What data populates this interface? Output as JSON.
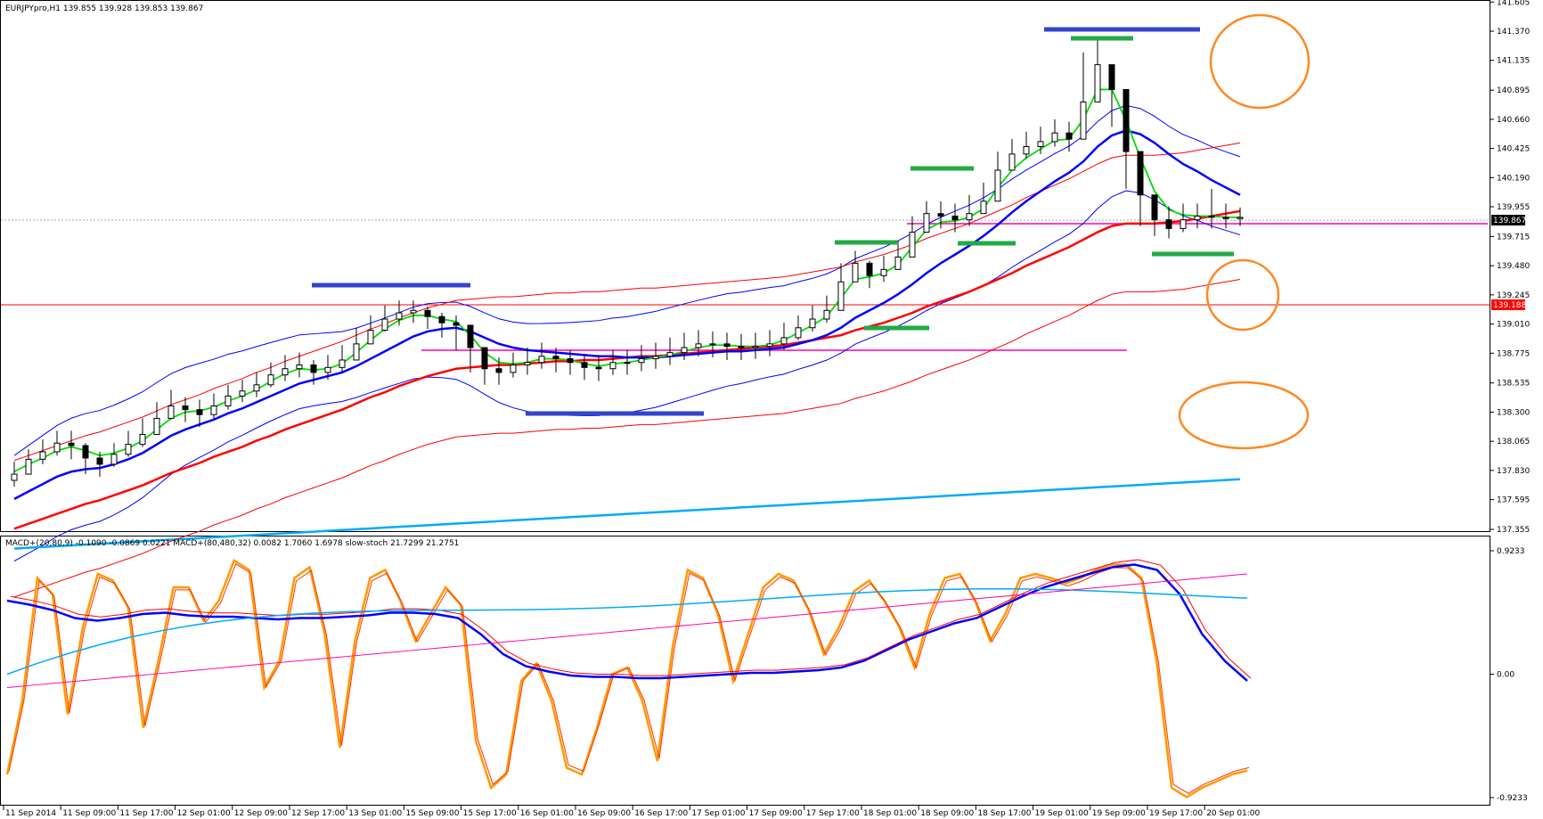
{
  "window": {
    "main_header": "EURJPYpro,H1  139.855 139.928 139.853 139.867",
    "sub_header": "MACD+(20,80,9) -0.1090 -0.0869 0.0221  MACD+(80,480,32) 0.0082 1.7060 1.6978  slow-stoch 21.7299 21.2751",
    "current_price": "139.867",
    "hline_price": "139.188"
  },
  "colors": {
    "price_line": "#ff0000",
    "bid_label_bg": "#000000",
    "ema_fast": "#00dd00",
    "ema_mid": "#0000ff",
    "ema_slow": "#ff0000",
    "ema_long": "#00aaff",
    "bollinger": "#0000ff",
    "envelope": "#ff0000",
    "support": "#ff00aa",
    "blue_marker": "#3344cc",
    "green_marker": "#22aa44",
    "circle": "#ff8822",
    "stoch": "#ff9900"
  },
  "chart_data": [
    {
      "type": "candlestick",
      "title": "EURJPYpro,H1",
      "ylim": [
        137.355,
        141.6
      ],
      "y_ticks": [
        "141.605",
        "141.370",
        "141.135",
        "140.895",
        "140.660",
        "140.425",
        "140.190",
        "139.955",
        "139.715",
        "139.480",
        "139.245",
        "139.010",
        "138.775",
        "138.535",
        "138.300",
        "138.065",
        "137.830",
        "137.595",
        "137.355"
      ],
      "x_ticks": [
        "11 Sep 2014",
        "11 Sep 09:00",
        "11 Sep 17:00",
        "12 Sep 01:00",
        "12 Sep 09:00",
        "12 Sep 17:00",
        "13 Sep 01:00",
        "15 Sep 09:00",
        "15 Sep 17:00",
        "16 Sep 01:00",
        "16 Sep 09:00",
        "16 Sep 17:00",
        "17 Sep 01:00",
        "17 Sep 09:00",
        "17 Sep 17:00",
        "18 Sep 01:00",
        "18 Sep 09:00",
        "18 Sep 17:00",
        "19 Sep 01:00",
        "19 Sep 09:00",
        "19 Sep 17:00",
        "20 Sep 01:00"
      ],
      "close": [
        137.8,
        137.92,
        137.98,
        138.05,
        138.03,
        137.93,
        137.88,
        137.96,
        138.04,
        138.12,
        138.25,
        138.35,
        138.32,
        138.28,
        138.35,
        138.43,
        138.47,
        138.52,
        138.6,
        138.65,
        138.68,
        138.62,
        138.66,
        138.72,
        138.85,
        138.96,
        139.05,
        139.1,
        139.12,
        139.07,
        139.02,
        139.0,
        138.82,
        138.65,
        138.62,
        138.68,
        138.7,
        138.75,
        138.73,
        138.7,
        138.66,
        138.65,
        138.7,
        138.7,
        138.73,
        138.75,
        138.78,
        138.82,
        138.85,
        138.85,
        138.83,
        138.82,
        138.83,
        138.85,
        138.9,
        138.98,
        139.05,
        139.12,
        139.35,
        139.5,
        139.4,
        139.45,
        139.55,
        139.75,
        139.9,
        139.88,
        139.85,
        139.9,
        140.0,
        140.25,
        140.38,
        140.44,
        140.48,
        140.55,
        140.5,
        140.8,
        141.1,
        140.9,
        140.4,
        140.05,
        139.85,
        139.78,
        139.85,
        139.88,
        139.87,
        139.86,
        139.87
      ],
      "high": [
        137.9,
        138.0,
        138.08,
        138.15,
        138.15,
        138.05,
        137.98,
        138.05,
        138.15,
        138.25,
        138.38,
        138.48,
        138.42,
        138.4,
        138.45,
        138.52,
        138.56,
        138.62,
        138.7,
        138.76,
        138.78,
        138.72,
        138.76,
        138.84,
        138.98,
        139.08,
        139.16,
        139.2,
        139.2,
        139.15,
        139.1,
        139.08,
        138.98,
        138.8,
        138.74,
        138.78,
        138.82,
        138.86,
        138.82,
        138.8,
        138.76,
        138.76,
        138.8,
        138.8,
        138.84,
        138.86,
        138.9,
        138.94,
        138.96,
        138.95,
        138.94,
        138.93,
        138.94,
        138.96,
        139.02,
        139.08,
        139.16,
        139.24,
        139.5,
        139.6,
        139.52,
        139.56,
        139.68,
        139.88,
        140.0,
        140.0,
        139.98,
        140.05,
        140.15,
        140.4,
        140.5,
        140.56,
        140.6,
        140.66,
        140.64,
        141.2,
        141.3,
        141.1,
        140.7,
        140.25,
        140.0,
        139.96,
        139.98,
        139.98,
        140.1,
        139.98,
        139.95
      ],
      "low": [
        137.7,
        137.82,
        137.88,
        137.95,
        137.92,
        137.8,
        137.78,
        137.86,
        137.94,
        138.02,
        138.14,
        138.24,
        138.22,
        138.18,
        138.25,
        138.32,
        138.38,
        138.42,
        138.5,
        138.55,
        138.58,
        138.52,
        138.56,
        138.62,
        138.74,
        138.86,
        138.95,
        139.0,
        139.02,
        138.97,
        138.9,
        138.8,
        138.62,
        138.52,
        138.52,
        138.58,
        138.6,
        138.65,
        138.62,
        138.6,
        138.56,
        138.55,
        138.6,
        138.6,
        138.63,
        138.65,
        138.68,
        138.72,
        138.75,
        138.74,
        138.72,
        138.72,
        138.73,
        138.75,
        138.8,
        138.88,
        138.95,
        139.02,
        139.15,
        139.38,
        139.3,
        139.35,
        139.45,
        139.64,
        139.78,
        139.78,
        139.75,
        139.8,
        139.9,
        140.15,
        140.28,
        140.34,
        140.38,
        140.44,
        140.4,
        140.5,
        140.8,
        140.6,
        140.1,
        139.8,
        139.72,
        139.7,
        139.75,
        139.78,
        139.78,
        139.78,
        139.8
      ],
      "ema_fast": [
        137.82,
        137.88,
        137.93,
        137.99,
        138.02,
        137.99,
        137.95,
        137.97,
        138.01,
        138.07,
        138.16,
        138.25,
        138.3,
        138.31,
        138.34,
        138.39,
        138.43,
        138.48,
        138.55,
        138.61,
        138.65,
        138.64,
        138.65,
        138.69,
        138.78,
        138.88,
        138.97,
        139.04,
        139.08,
        139.08,
        139.05,
        139.03,
        138.92,
        138.78,
        138.7,
        138.69,
        138.7,
        138.73,
        138.73,
        138.72,
        138.69,
        138.67,
        138.69,
        138.7,
        138.72,
        138.74,
        138.76,
        138.79,
        138.82,
        138.84,
        138.84,
        138.83,
        138.83,
        138.84,
        138.88,
        138.94,
        139.0,
        139.07,
        139.22,
        139.37,
        139.39,
        139.42,
        139.49,
        139.63,
        139.77,
        139.83,
        139.84,
        139.87,
        139.94,
        140.11,
        140.25,
        140.35,
        140.42,
        140.49,
        140.5,
        140.66,
        140.9,
        140.9,
        140.65,
        140.35,
        140.08,
        139.93,
        139.89,
        139.88,
        139.88,
        139.87,
        139.87
      ],
      "ema_mid": [
        137.6,
        137.66,
        137.72,
        137.78,
        137.82,
        137.84,
        137.85,
        137.88,
        137.92,
        137.97,
        138.04,
        138.11,
        138.16,
        138.2,
        138.24,
        138.29,
        138.33,
        138.38,
        138.43,
        138.48,
        138.53,
        138.56,
        138.59,
        138.62,
        138.67,
        138.73,
        138.79,
        138.85,
        138.91,
        138.95,
        138.97,
        138.98,
        138.95,
        138.9,
        138.85,
        138.82,
        138.8,
        138.79,
        138.78,
        138.77,
        138.76,
        138.75,
        138.75,
        138.74,
        138.74,
        138.74,
        138.75,
        138.76,
        138.77,
        138.78,
        138.79,
        138.79,
        138.8,
        138.81,
        138.82,
        138.85,
        138.88,
        138.92,
        138.98,
        139.06,
        139.12,
        139.18,
        139.25,
        139.33,
        139.42,
        139.5,
        139.57,
        139.64,
        139.72,
        139.81,
        139.91,
        140.0,
        140.08,
        140.16,
        140.23,
        140.32,
        140.44,
        140.53,
        140.57,
        140.54,
        140.47,
        140.38,
        140.3,
        140.24,
        140.17,
        140.11,
        140.05
      ],
      "ema_slow": [
        137.36,
        137.4,
        137.44,
        137.48,
        137.52,
        137.56,
        137.59,
        137.63,
        137.67,
        137.71,
        137.76,
        137.81,
        137.85,
        137.89,
        137.94,
        137.98,
        138.02,
        138.07,
        138.11,
        138.16,
        138.2,
        138.24,
        138.28,
        138.32,
        138.37,
        138.42,
        138.46,
        138.51,
        138.55,
        138.59,
        138.62,
        138.65,
        138.66,
        138.67,
        138.68,
        138.68,
        138.69,
        138.7,
        138.71,
        138.71,
        138.72,
        138.72,
        138.73,
        138.74,
        138.75,
        138.75,
        138.76,
        138.77,
        138.78,
        138.79,
        138.8,
        138.81,
        138.82,
        138.83,
        138.84,
        138.86,
        138.88,
        138.9,
        138.92,
        138.96,
        138.99,
        139.02,
        139.06,
        139.1,
        139.15,
        139.19,
        139.23,
        139.27,
        139.32,
        139.37,
        139.42,
        139.48,
        139.53,
        139.58,
        139.63,
        139.69,
        139.75,
        139.8,
        139.82,
        139.82,
        139.82,
        139.83,
        139.84,
        139.86,
        139.88,
        139.9,
        139.92
      ]
    },
    {
      "type": "line",
      "title": "MACD+(20,80,9) MACD+(80,480,32) slow-stoch",
      "ylim": [
        -0.9233,
        0.9233
      ],
      "y_ticks": [
        "0.9233",
        "0.00",
        "-0.9233"
      ],
      "series": [
        {
          "name": "slow-stoch",
          "values": [
            -0.75,
            -0.2,
            0.72,
            0.6,
            -0.3,
            0.35,
            0.75,
            0.7,
            0.5,
            -0.4,
            0.1,
            0.65,
            0.65,
            0.4,
            0.55,
            0.85,
            0.78,
            -0.1,
            0.1,
            0.72,
            0.8,
            0.3,
            -0.55,
            0.25,
            0.72,
            0.78,
            0.55,
            0.25,
            0.45,
            0.65,
            0.52,
            -0.5,
            -0.85,
            -0.75,
            -0.05,
            0.08,
            -0.2,
            -0.7,
            -0.75,
            -0.4,
            0.0,
            0.05,
            -0.2,
            -0.65,
            0.2,
            0.78,
            0.72,
            0.45,
            -0.05,
            0.3,
            0.65,
            0.75,
            0.7,
            0.48,
            0.15,
            0.35,
            0.62,
            0.7,
            0.55,
            0.35,
            0.05,
            0.45,
            0.72,
            0.75,
            0.55,
            0.25,
            0.45,
            0.72,
            0.75,
            0.72,
            0.68,
            0.72,
            0.78,
            0.82,
            0.82,
            0.72,
            0.1,
            -0.85,
            -0.92,
            -0.85,
            -0.8,
            -0.75,
            -0.72
          ],
          "color": "#ff9900"
        },
        {
          "name": "MACD+(20,80,9)",
          "values": [
            0.55,
            0.52,
            0.48,
            0.42,
            0.4,
            0.42,
            0.45,
            0.46,
            0.44,
            0.43,
            0.43,
            0.42,
            0.41,
            0.42,
            0.42,
            0.43,
            0.44,
            0.46,
            0.46,
            0.45,
            0.42,
            0.3,
            0.15,
            0.06,
            0.02,
            -0.01,
            -0.02,
            -0.02,
            -0.03,
            -0.03,
            -0.02,
            -0.01,
            0.0,
            0.01,
            0.01,
            0.02,
            0.03,
            0.05,
            0.1,
            0.18,
            0.26,
            0.32,
            0.38,
            0.42,
            0.5,
            0.58,
            0.65,
            0.7,
            0.75,
            0.8,
            0.82,
            0.78,
            0.6,
            0.3,
            0.1,
            -0.05
          ],
          "color": "#0000ff"
        }
      ]
    }
  ]
}
